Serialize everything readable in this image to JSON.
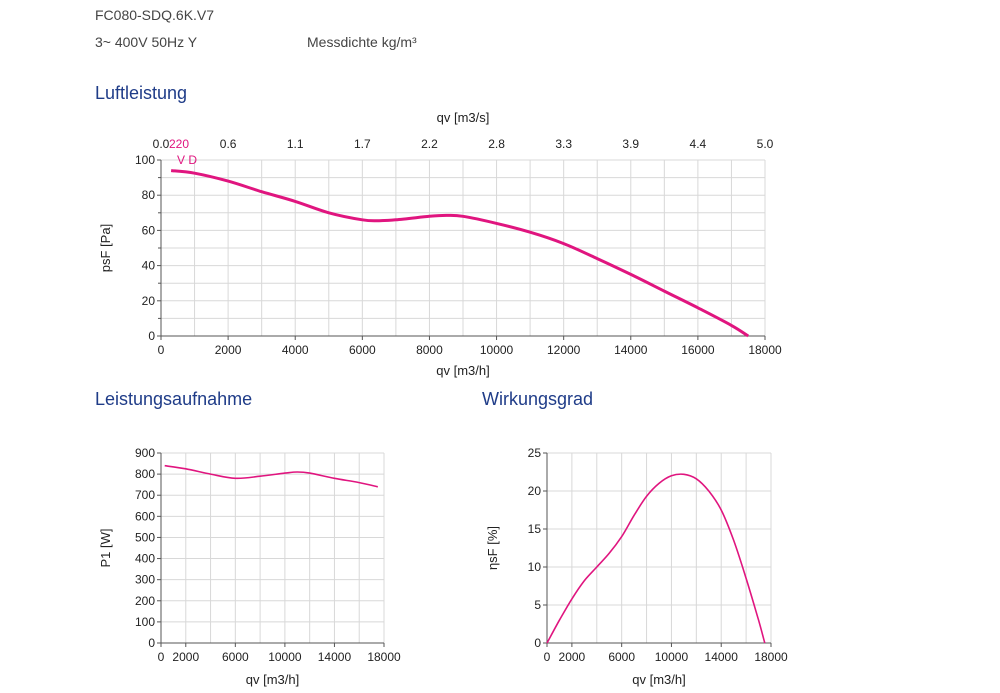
{
  "header": {
    "model": "FC080-SDQ.6K.V7",
    "supply": "3~ 400V 50Hz Y",
    "density": "Messdichte  kg/m³"
  },
  "sections": {
    "luftleistung": "Luftleistung",
    "leistungsaufnahme": "Leistungsaufnahme",
    "wirkungsgrad": "Wirkungsgrad"
  },
  "chart_data": [
    {
      "type": "line",
      "xlabel": "qv [m3/h]",
      "ylabel": "psF [Pa]",
      "x2label": "qv [m3/s]",
      "xlim": [
        0,
        18000
      ],
      "ylim": [
        0,
        100
      ],
      "xticks": [
        0,
        2000,
        4000,
        6000,
        8000,
        10000,
        12000,
        14000,
        16000,
        18000
      ],
      "yticks": [
        0,
        20,
        40,
        60,
        80,
        100
      ],
      "x2ticks": [
        "0.0",
        "0.6",
        "1.1",
        "1.7",
        "2.2",
        "2.8",
        "3.3",
        "3.9",
        "4.4",
        "5.0"
      ],
      "series_labels": [
        "220",
        "V D"
      ],
      "grid": true,
      "series": [
        {
          "x": [
            300,
            1000,
            2000,
            3000,
            4000,
            5000,
            6000,
            6500,
            7000,
            8000,
            8500,
            9000,
            10000,
            11000,
            12000,
            13000,
            14000,
            15000,
            16000,
            17000,
            17500
          ],
          "values": [
            94,
            92.5,
            88,
            82,
            76.5,
            70,
            66,
            65.5,
            66,
            68,
            68.5,
            68,
            64,
            59,
            52.5,
            44,
            35,
            25.5,
            16,
            6,
            0
          ]
        }
      ]
    },
    {
      "type": "line",
      "xlabel": "qv [m3/h]",
      "ylabel": "P1 [W]",
      "xlim": [
        0,
        18000
      ],
      "ylim": [
        0,
        900
      ],
      "xticks": [
        0,
        2000,
        6000,
        10000,
        14000,
        18000
      ],
      "yticks": [
        0,
        100,
        200,
        300,
        400,
        500,
        600,
        700,
        800,
        900
      ],
      "grid": true,
      "series": [
        {
          "x": [
            300,
            2000,
            4000,
            6000,
            8000,
            10000,
            11000,
            12000,
            14000,
            16000,
            17500
          ],
          "values": [
            840,
            825,
            800,
            780,
            790,
            805,
            810,
            805,
            780,
            760,
            740
          ]
        }
      ]
    },
    {
      "type": "line",
      "xlabel": "qv [m3/h]",
      "ylabel": "ηsF [%]",
      "xlim": [
        0,
        18000
      ],
      "ylim": [
        0,
        25
      ],
      "xticks": [
        0,
        2000,
        6000,
        10000,
        14000,
        18000
      ],
      "yticks": [
        0,
        5,
        10,
        15,
        20,
        25
      ],
      "grid": true,
      "series": [
        {
          "x": [
            0,
            1000,
            2000,
            3000,
            4000,
            5000,
            6000,
            7000,
            8000,
            9000,
            10000,
            11000,
            12000,
            13000,
            14000,
            15000,
            16000,
            17000,
            17500
          ],
          "values": [
            0,
            3,
            5.8,
            8.2,
            10,
            11.8,
            14,
            16.8,
            19.3,
            21,
            22,
            22.2,
            21.6,
            20,
            17.5,
            13.5,
            8.5,
            3,
            0
          ]
        }
      ]
    }
  ]
}
